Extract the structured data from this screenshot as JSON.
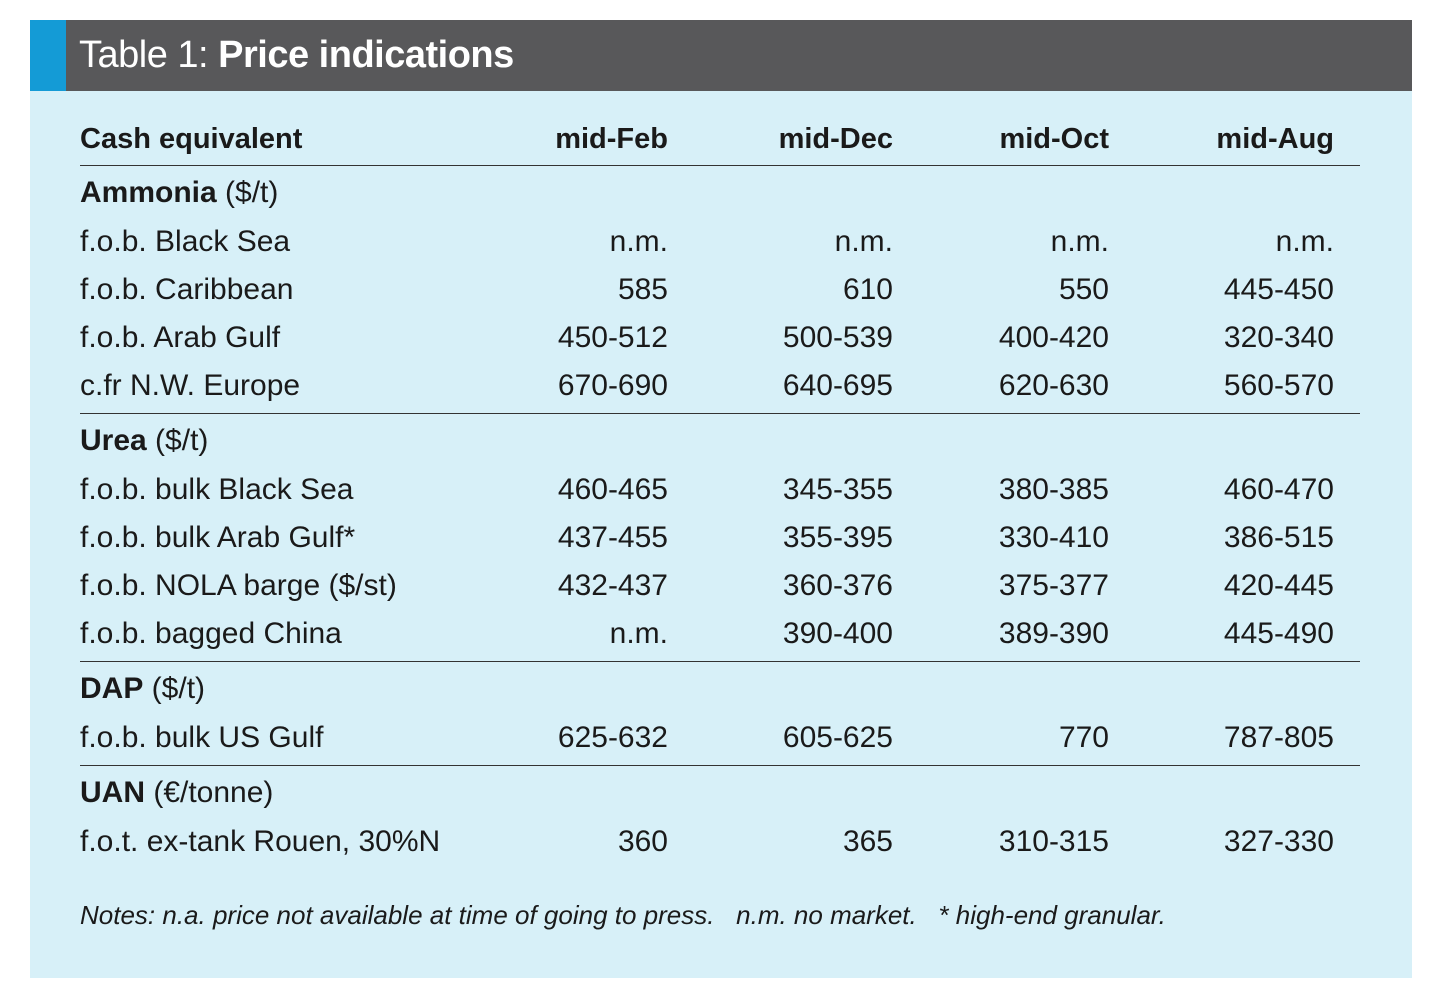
{
  "title": {
    "prefix": "Table 1: ",
    "main": "Price indications"
  },
  "header": {
    "label": "Cash equivalent",
    "columns": [
      "mid-Feb",
      "mid-Dec",
      "mid-Oct",
      "mid-Aug"
    ]
  },
  "sections": [
    {
      "name": "Ammonia",
      "unit": " ($/t)",
      "rows": [
        {
          "label": "f.o.b. Black Sea",
          "values": [
            "n.m.",
            "n.m.",
            "n.m.",
            "n.m."
          ]
        },
        {
          "label": "f.o.b. Caribbean",
          "values": [
            "585",
            "610",
            "550",
            "445-450"
          ]
        },
        {
          "label": "f.o.b. Arab Gulf",
          "values": [
            "450-512",
            "500-539",
            "400-420",
            "320-340"
          ]
        },
        {
          "label": "c.fr N.W. Europe",
          "values": [
            "670-690",
            "640-695",
            "620-630",
            "560-570"
          ]
        }
      ]
    },
    {
      "name": "Urea",
      "unit": " ($/t)",
      "rows": [
        {
          "label": "f.o.b. bulk Black Sea",
          "values": [
            "460-465",
            "345-355",
            "380-385",
            "460-470"
          ]
        },
        {
          "label": "f.o.b. bulk Arab Gulf*",
          "values": [
            "437-455",
            "355-395",
            "330-410",
            "386-515"
          ]
        },
        {
          "label": "f.o.b. NOLA barge ($/st)",
          "values": [
            "432-437",
            "360-376",
            "375-377",
            "420-445"
          ]
        },
        {
          "label": "f.o.b. bagged China",
          "values": [
            "n.m.",
            "390-400",
            "389-390",
            "445-490"
          ]
        }
      ]
    },
    {
      "name": "DAP",
      "unit": " ($/t)",
      "rows": [
        {
          "label": "f.o.b. bulk US Gulf",
          "values": [
            "625-632",
            "605-625",
            "770",
            "787-805"
          ]
        }
      ]
    },
    {
      "name": "UAN",
      "unit": " (€/tonne)",
      "rows": [
        {
          "label": "f.o.t. ex-tank Rouen, 30%N",
          "values": [
            "360",
            "365",
            "310-315",
            "327-330"
          ]
        }
      ]
    }
  ],
  "notes": "Notes: n.a. price not available at time of going to press.   n.m. no market.   * high-end granular."
}
